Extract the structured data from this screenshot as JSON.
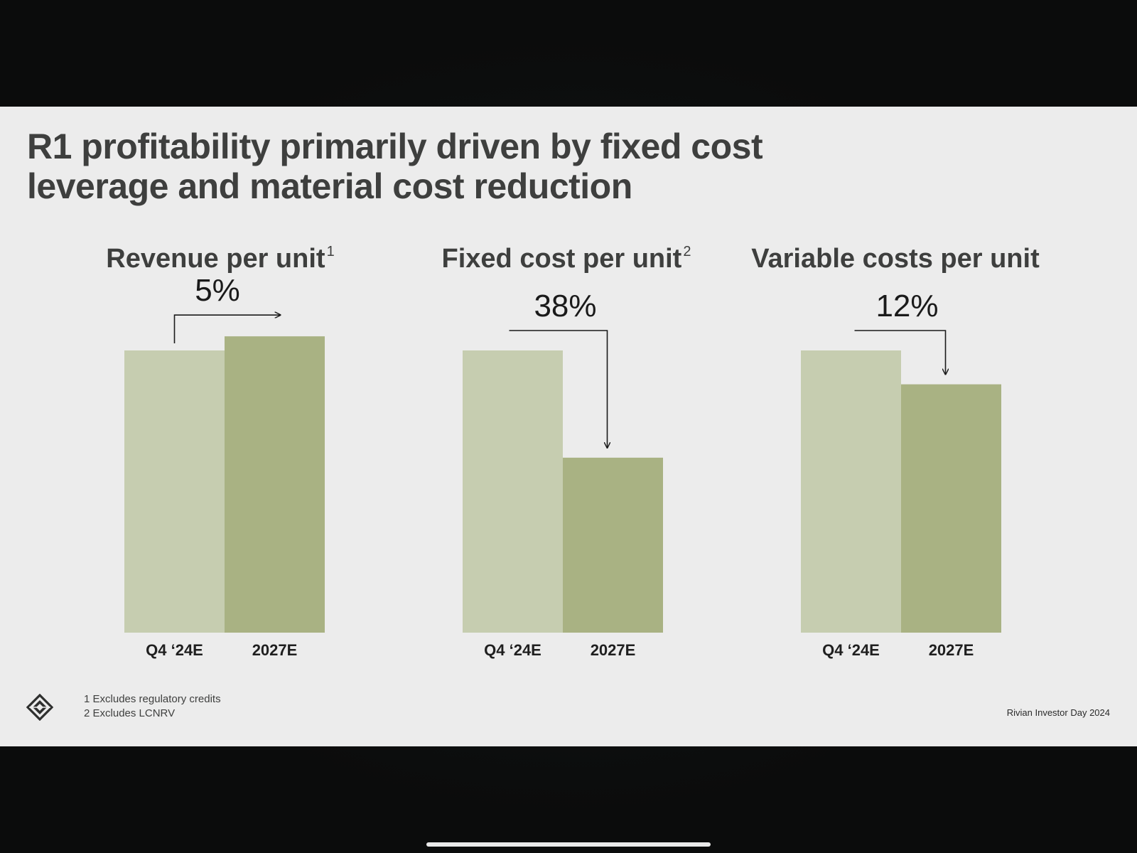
{
  "slide": {
    "title_lines": [
      "R1 profitability primarily driven by fixed cost",
      "leverage and material cost reduction"
    ],
    "footnotes": [
      "1  Excludes regulatory credits",
      "2  Excludes LCNRV"
    ],
    "source": "Rivian Investor Day 2024",
    "logo_icon": "rivian-compass-icon"
  },
  "colors": {
    "bar_q4_24e": "#c6cdb0",
    "bar_2027e": "#a9b283",
    "slide_background": "#ececec",
    "text": "#3e3f3e"
  },
  "chart_data": [
    {
      "type": "bar",
      "title": "Revenue per unit",
      "title_footnote": "1",
      "categories": [
        "Q4 ‘24E",
        "2027E"
      ],
      "values": [
        100,
        105
      ],
      "change_label": "5%",
      "direction": "up",
      "ylim": [
        0,
        120
      ],
      "grid": false
    },
    {
      "type": "bar",
      "title": "Fixed cost per unit",
      "title_footnote": "2",
      "categories": [
        "Q4 ‘24E",
        "2027E"
      ],
      "values": [
        100,
        62
      ],
      "change_label": "38%",
      "direction": "down",
      "ylim": [
        0,
        120
      ],
      "grid": false
    },
    {
      "type": "bar",
      "title": "Variable costs per unit",
      "title_footnote": "",
      "categories": [
        "Q4 ‘24E",
        "2027E"
      ],
      "values": [
        100,
        88
      ],
      "change_label": "12%",
      "direction": "down",
      "ylim": [
        0,
        120
      ],
      "grid": false
    }
  ]
}
